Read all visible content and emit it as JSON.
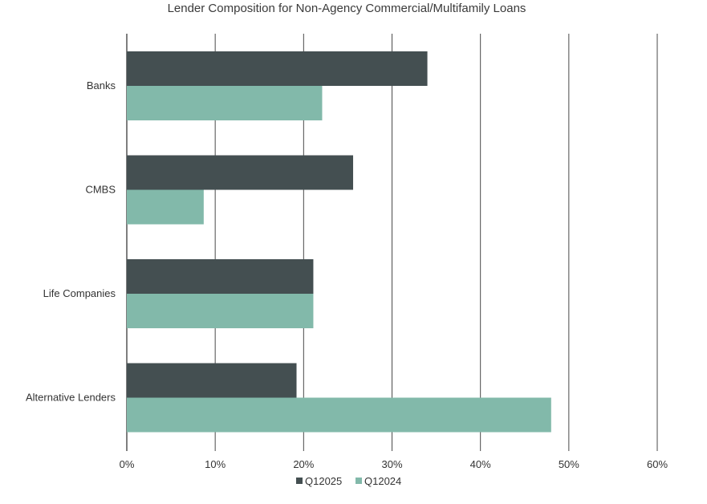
{
  "chart_data": {
    "type": "bar",
    "orientation": "horizontal",
    "title": "Lender Composition for Non-Agency Commercial/Multifamily Loans",
    "categories": [
      "Banks",
      "CMBS",
      "Life Companies",
      "Alternative Lenders"
    ],
    "series": [
      {
        "name": "Q12025",
        "values": [
          34.0,
          25.6,
          21.1,
          19.2
        ],
        "color": "#444f51"
      },
      {
        "name": "Q12024",
        "values": [
          22.1,
          8.7,
          21.1,
          48.0
        ],
        "color": "#82b9aa"
      }
    ],
    "xlim": [
      0,
      60
    ],
    "xticks": [
      0,
      10,
      20,
      30,
      40,
      50,
      60
    ],
    "xtick_labels": [
      "0%",
      "10%",
      "20%",
      "30%",
      "40%",
      "50%",
      "60%"
    ],
    "grid": "vertical",
    "legend_position": "bottom"
  }
}
